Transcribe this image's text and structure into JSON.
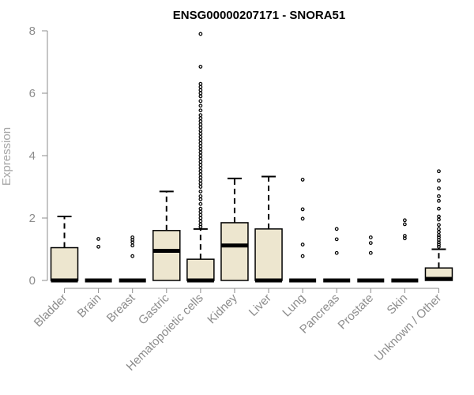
{
  "chart_data": {
    "type": "box",
    "title": "ENSG00000207171 - SNORA51",
    "xlabel": "",
    "ylabel": "Expression",
    "ylim": [
      0,
      8
    ],
    "yticks": [
      0,
      2,
      4,
      6,
      8
    ],
    "grid": false,
    "box_fill": "#ede6cf",
    "line_color": "#000000",
    "categories": [
      "Bladder",
      "Brain",
      "Breast",
      "Gastric",
      "Hematopoietic cells",
      "Kidney",
      "Liver",
      "Lung",
      "Pancreas",
      "Prostate",
      "Skin",
      "Unknown / Other"
    ],
    "boxes": [
      {
        "q1": 0,
        "median": 0,
        "q3": 1.05,
        "whisker_low": 0,
        "whisker_high": 2.05,
        "outliers": []
      },
      {
        "q1": 0,
        "median": 0,
        "q3": 0,
        "whisker_low": 0,
        "whisker_high": 0,
        "outliers": [
          1.08,
          1.33
        ]
      },
      {
        "q1": 0,
        "median": 0,
        "q3": 0,
        "whisker_low": 0,
        "whisker_high": 0,
        "outliers": [
          0.78,
          1.12,
          1.22,
          1.3,
          1.38
        ]
      },
      {
        "q1": 0,
        "median": 0.95,
        "q3": 1.6,
        "whisker_low": 0,
        "whisker_high": 2.85,
        "outliers": []
      },
      {
        "q1": 0,
        "median": 0,
        "q3": 0.68,
        "whisker_low": 0,
        "whisker_high": 1.65,
        "outliers": [
          1.72,
          1.8,
          1.9,
          2.0,
          2.1,
          2.2,
          2.3,
          2.45,
          2.6,
          2.7,
          2.85,
          3.0,
          3.1,
          3.2,
          3.3,
          3.4,
          3.5,
          3.6,
          3.7,
          3.8,
          3.9,
          4.0,
          4.1,
          4.2,
          4.3,
          4.4,
          4.5,
          4.6,
          4.7,
          4.8,
          4.9,
          5.0,
          5.1,
          5.2,
          5.3,
          5.45,
          5.6,
          5.75,
          5.9,
          6.0,
          6.1,
          6.2,
          6.3,
          6.85,
          7.9
        ]
      },
      {
        "q1": 0,
        "median": 1.12,
        "q3": 1.85,
        "whisker_low": 0,
        "whisker_high": 3.27,
        "outliers": []
      },
      {
        "q1": 0,
        "median": 0,
        "q3": 1.65,
        "whisker_low": 0,
        "whisker_high": 3.33,
        "outliers": []
      },
      {
        "q1": 0,
        "median": 0,
        "q3": 0,
        "whisker_low": 0,
        "whisker_high": 0,
        "outliers": [
          0.78,
          1.15,
          1.98,
          2.28,
          3.23
        ]
      },
      {
        "q1": 0,
        "median": 0,
        "q3": 0,
        "whisker_low": 0,
        "whisker_high": 0,
        "outliers": [
          0.88,
          1.32,
          1.65
        ]
      },
      {
        "q1": 0,
        "median": 0,
        "q3": 0,
        "whisker_low": 0,
        "whisker_high": 0,
        "outliers": [
          0.88,
          1.2,
          1.38
        ]
      },
      {
        "q1": 0,
        "median": 0,
        "q3": 0,
        "whisker_low": 0,
        "whisker_high": 0,
        "outliers": [
          1.35,
          1.43,
          1.8,
          1.93
        ]
      },
      {
        "q1": 0,
        "median": 0.05,
        "q3": 0.4,
        "whisker_low": 0,
        "whisker_high": 1.0,
        "outliers": [
          1.08,
          1.15,
          1.22,
          1.3,
          1.38,
          1.45,
          1.55,
          1.65,
          1.78,
          1.95,
          2.05,
          2.3,
          2.55,
          2.7,
          2.95,
          3.2,
          3.5
        ]
      }
    ]
  }
}
